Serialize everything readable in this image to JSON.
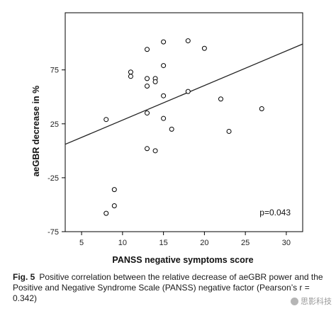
{
  "chart_data": {
    "type": "scatter",
    "xlabel": "PANSS negative symptoms score",
    "ylabel": "aeGBR decrease in %",
    "xlim": [
      3,
      32
    ],
    "ylim": [
      -75,
      128
    ],
    "xticks": [
      5,
      10,
      15,
      20,
      25,
      30
    ],
    "yticks": [
      -75,
      -25,
      25,
      75
    ],
    "points": [
      {
        "x": 8,
        "y": 29
      },
      {
        "x": 8,
        "y": -58
      },
      {
        "x": 9,
        "y": -36
      },
      {
        "x": 9,
        "y": -51
      },
      {
        "x": 11,
        "y": 73
      },
      {
        "x": 11,
        "y": 69
      },
      {
        "x": 13,
        "y": 94
      },
      {
        "x": 13,
        "y": 67
      },
      {
        "x": 13,
        "y": 60
      },
      {
        "x": 13,
        "y": 35
      },
      {
        "x": 13,
        "y": 2
      },
      {
        "x": 14,
        "y": 67
      },
      {
        "x": 14,
        "y": 64
      },
      {
        "x": 14,
        "y": 0
      },
      {
        "x": 15,
        "y": 101
      },
      {
        "x": 15,
        "y": 79
      },
      {
        "x": 15,
        "y": 51
      },
      {
        "x": 15,
        "y": 30
      },
      {
        "x": 16,
        "y": 20
      },
      {
        "x": 18,
        "y": 102
      },
      {
        "x": 18,
        "y": 55
      },
      {
        "x": 20,
        "y": 95
      },
      {
        "x": 22,
        "y": 48
      },
      {
        "x": 23,
        "y": 18
      },
      {
        "x": 27,
        "y": 39
      }
    ],
    "fit_line": {
      "x": [
        3,
        32
      ],
      "y": [
        6,
        99
      ]
    },
    "annotation": "p=0.043",
    "grid": false,
    "legend": "none"
  },
  "caption": {
    "label": "Fig. 5",
    "text": "Positive correlation between the relative decrease of aeGBR power and the Positive and Negative Syndrome Scale (PANSS) negative factor (Pearson’s r = 0.342)"
  },
  "watermark": "思影科技"
}
